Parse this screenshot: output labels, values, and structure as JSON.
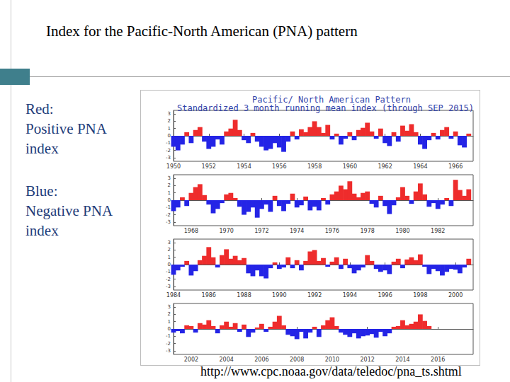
{
  "slide": {
    "title": "Index for the Pacific-North American (PNA) pattern",
    "notes": [
      {
        "label": "Red:",
        "text": "Positive PNA index",
        "color": "#ee2c2c"
      },
      {
        "label": "Blue:",
        "text": "Negative PNA index",
        "color": "#2424e6"
      }
    ],
    "source": "http://www.cpc.noaa.gov/data/teledoc/pna_ts.shtml"
  },
  "figure": {
    "title": "Pacific/ North American Pattern",
    "subtitle": "Standardized 3 month running mean index (through SEP 2015)"
  },
  "chart_data": [
    {
      "type": "bar",
      "x": [
        1950,
        1950.25,
        1950.5,
        1950.75,
        1951,
        1951.25,
        1951.5,
        1951.75,
        1952,
        1952.25,
        1952.5,
        1952.75,
        1953,
        1953.25,
        1953.5,
        1953.75,
        1954,
        1954.25,
        1954.5,
        1954.75,
        1955,
        1955.25,
        1955.5,
        1955.75,
        1956,
        1956.25,
        1956.5,
        1956.75,
        1957,
        1957.25,
        1957.5,
        1957.75,
        1958,
        1958.25,
        1958.5,
        1958.75,
        1959,
        1959.25,
        1959.5,
        1959.75,
        1960,
        1960.25,
        1960.5,
        1960.75,
        1961,
        1961.25,
        1961.5,
        1961.75,
        1962,
        1962.25,
        1962.5,
        1962.75,
        1963,
        1963.25,
        1963.5,
        1963.75,
        1964,
        1964.25,
        1964.5,
        1964.75,
        1965,
        1965.25,
        1965.5,
        1965.75,
        1966,
        1966.25,
        1966.5,
        1966.75
      ],
      "values": [
        -1.5,
        -2.0,
        -1.2,
        0.5,
        -1.0,
        0.8,
        1.2,
        -0.8,
        -1.8,
        -1.5,
        -0.5,
        -1.2,
        0.6,
        1.0,
        2.2,
        0.8,
        -0.6,
        -1.0,
        0.4,
        -0.8,
        -1.5,
        -2.0,
        -1.8,
        -1.0,
        -1.6,
        -2.2,
        -0.8,
        0.6,
        -0.5,
        0.9,
        0.5,
        1.2,
        2.0,
        1.2,
        0.4,
        1.5,
        -0.5,
        0.3,
        -1.2,
        -0.4,
        0.5,
        -0.6,
        0.8,
        1.1,
        1.8,
        0.6,
        -0.4,
        1.0,
        -1.0,
        -1.4,
        0.5,
        -0.8,
        1.4,
        0.7,
        1.6,
        0.5,
        -1.2,
        -1.8,
        -0.6,
        0.4,
        -0.5,
        0.8,
        1.2,
        -0.4,
        0.6,
        -1.3,
        -1.6,
        0.3
      ],
      "xlim": [
        1950,
        1967
      ],
      "xticks": [
        1950,
        1952,
        1954,
        1956,
        1958,
        1960,
        1962,
        1964,
        1966
      ],
      "ylim": [
        -3.5,
        3.5
      ],
      "yticks": [
        -3,
        -2,
        -1,
        0,
        1,
        2,
        3
      ],
      "grid": false
    },
    {
      "type": "bar",
      "x": [
        1967,
        1967.25,
        1967.5,
        1967.75,
        1968,
        1968.25,
        1968.5,
        1968.75,
        1969,
        1969.25,
        1969.5,
        1969.75,
        1970,
        1970.25,
        1970.5,
        1970.75,
        1971,
        1971.25,
        1971.5,
        1971.75,
        1972,
        1972.25,
        1972.5,
        1972.75,
        1973,
        1973.25,
        1973.5,
        1973.75,
        1974,
        1974.25,
        1974.5,
        1974.75,
        1975,
        1975.25,
        1975.5,
        1975.75,
        1976,
        1976.25,
        1976.5,
        1976.75,
        1977,
        1977.25,
        1977.5,
        1977.75,
        1978,
        1978.25,
        1978.5,
        1978.75,
        1979,
        1979.25,
        1979.5,
        1979.75,
        1980,
        1980.25,
        1980.5,
        1980.75,
        1981,
        1981.25,
        1981.5,
        1981.75,
        1982,
        1982.25,
        1982.5,
        1982.75,
        1983,
        1983.25,
        1983.5,
        1983.75
      ],
      "values": [
        -1.5,
        -1.0,
        0.4,
        -0.8,
        1.0,
        1.8,
        2.2,
        0.7,
        -0.6,
        -1.8,
        -1.2,
        -0.4,
        0.8,
        1.0,
        0.3,
        -0.9,
        -2.0,
        -1.6,
        -1.0,
        -2.4,
        -1.2,
        -0.6,
        -1.6,
        0.6,
        -0.8,
        -1.5,
        -0.5,
        0.9,
        -1.0,
        -0.7,
        0.5,
        -1.4,
        -0.9,
        -1.4,
        0.3,
        -0.6,
        0.8,
        1.2,
        2.0,
        1.5,
        2.6,
        0.9,
        0.4,
        1.0,
        1.2,
        -0.5,
        -1.0,
        0.6,
        -0.8,
        -1.9,
        -0.7,
        0.4,
        1.8,
        0.6,
        -0.5,
        1.2,
        2.3,
        0.8,
        -0.9,
        -0.4,
        -1.2,
        -0.6,
        0.3,
        -0.8,
        2.8,
        1.4,
        0.6,
        1.5
      ],
      "xlim": [
        1967,
        1984
      ],
      "xticks": [
        1968,
        1970,
        1972,
        1974,
        1976,
        1978,
        1980,
        1982
      ],
      "ylim": [
        -3.5,
        3.5
      ],
      "yticks": [
        -3,
        -2,
        -1,
        0,
        1,
        2,
        3
      ],
      "grid": false
    },
    {
      "type": "bar",
      "x": [
        1984,
        1984.25,
        1984.5,
        1984.75,
        1985,
        1985.25,
        1985.5,
        1985.75,
        1986,
        1986.25,
        1986.5,
        1986.75,
        1987,
        1987.25,
        1987.5,
        1987.75,
        1988,
        1988.25,
        1988.5,
        1988.75,
        1989,
        1989.25,
        1989.5,
        1989.75,
        1990,
        1990.25,
        1990.5,
        1990.75,
        1991,
        1991.25,
        1991.5,
        1991.75,
        1992,
        1992.25,
        1992.5,
        1992.75,
        1993,
        1993.25,
        1993.5,
        1993.75,
        1994,
        1994.25,
        1994.5,
        1994.75,
        1995,
        1995.25,
        1995.5,
        1995.75,
        1996,
        1996.25,
        1996.5,
        1996.75,
        1997,
        1997.25,
        1997.5,
        1997.75,
        1998,
        1998.25,
        1998.5,
        1998.75,
        1999,
        1999.25,
        1999.5,
        1999.75,
        2000,
        2000.25,
        2000.5,
        2000.75
      ],
      "values": [
        -1.4,
        -0.8,
        -0.3,
        0.5,
        -1.5,
        -0.9,
        0.6,
        1.2,
        2.4,
        1.0,
        -0.4,
        1.3,
        2.1,
        0.8,
        1.2,
        0.6,
        0.9,
        -1.2,
        -1.6,
        -0.8,
        -1.6,
        -1.9,
        -0.5,
        0.3,
        -0.6,
        -0.4,
        1.0,
        -0.5,
        0.6,
        -0.8,
        0.5,
        1.8,
        2.0,
        0.5,
        0.9,
        -0.3,
        0.4,
        1.0,
        -0.6,
        0.8,
        -0.5,
        -1.2,
        -0.8,
        -0.4,
        1.3,
        0.5,
        -0.6,
        -1.0,
        -0.8,
        -1.3,
        0.4,
        0.8,
        -0.5,
        0.7,
        1.0,
        0.6,
        1.4,
        -0.3,
        -1.3,
        -0.6,
        -0.9,
        -1.5,
        -1.0,
        -0.6,
        -0.7,
        -1.2,
        -0.4,
        0.8
      ],
      "xlim": [
        1984,
        2001
      ],
      "xticks": [
        1984,
        1986,
        1988,
        1990,
        1992,
        1994,
        1996,
        1998,
        2000
      ],
      "ylim": [
        -3.5,
        3.5
      ],
      "yticks": [
        -3,
        -2,
        -1,
        0,
        1,
        2,
        3
      ],
      "grid": false
    },
    {
      "type": "bar",
      "x": [
        2001,
        2001.25,
        2001.5,
        2001.75,
        2002,
        2002.25,
        2002.5,
        2002.75,
        2003,
        2003.25,
        2003.5,
        2003.75,
        2004,
        2004.25,
        2004.5,
        2004.75,
        2005,
        2005.25,
        2005.5,
        2005.75,
        2006,
        2006.25,
        2006.5,
        2006.75,
        2007,
        2007.25,
        2007.5,
        2007.75,
        2008,
        2008.25,
        2008.5,
        2008.75,
        2009,
        2009.25,
        2009.5,
        2009.75,
        2010,
        2010.25,
        2010.5,
        2010.75,
        2011,
        2011.25,
        2011.5,
        2011.75,
        2012,
        2012.25,
        2012.5,
        2012.75,
        2013,
        2013.25,
        2013.5,
        2013.75,
        2014,
        2014.25,
        2014.5,
        2014.75,
        2015,
        2015.25,
        2015.5
      ],
      "values": [
        -0.5,
        -0.3,
        -0.6,
        0.5,
        0.4,
        -0.5,
        0.8,
        0.6,
        1.2,
        0.4,
        -0.6,
        0.5,
        1.0,
        0.3,
        0.8,
        -0.4,
        0.6,
        -1.1,
        -0.5,
        0.2,
        0.7,
        -0.4,
        0.3,
        1.0,
        1.8,
        0.5,
        -0.8,
        -1.0,
        -1.4,
        -0.4,
        -1.3,
        -0.5,
        0.3,
        -1.1,
        0.5,
        1.2,
        1.6,
        0.4,
        -0.5,
        -0.8,
        -1.1,
        -0.6,
        -1.3,
        -1.0,
        -0.9,
        -0.7,
        -1.2,
        -0.4,
        -1.0,
        -0.6,
        0.3,
        0.4,
        1.2,
        0.5,
        0.7,
        1.0,
        2.0,
        1.1,
        0.4
      ],
      "xlim": [
        2001,
        2018
      ],
      "xticks": [
        2002,
        2004,
        2006,
        2008,
        2010,
        2012,
        2014,
        2016
      ],
      "ylim": [
        -3.5,
        3.5
      ],
      "yticks": [
        -3,
        -2,
        -1,
        0,
        1,
        2,
        3
      ],
      "grid": false
    }
  ]
}
